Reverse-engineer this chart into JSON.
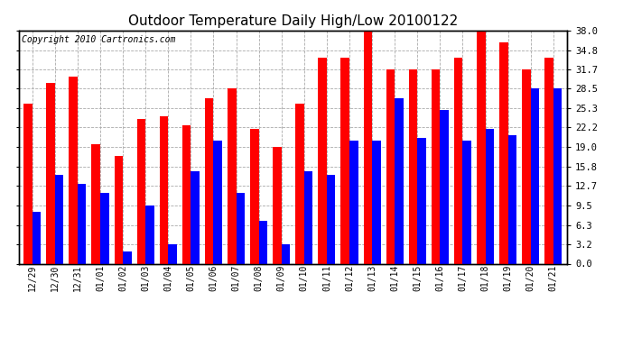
{
  "title": "Outdoor Temperature Daily High/Low 20100122",
  "copyright": "Copyright 2010 Cartronics.com",
  "dates": [
    "12/29",
    "12/30",
    "12/31",
    "01/01",
    "01/02",
    "01/03",
    "01/04",
    "01/05",
    "01/06",
    "01/07",
    "01/08",
    "01/09",
    "01/10",
    "01/11",
    "01/12",
    "01/13",
    "01/14",
    "01/15",
    "01/16",
    "01/17",
    "01/18",
    "01/19",
    "01/20",
    "01/21"
  ],
  "high": [
    26.0,
    29.5,
    30.5,
    19.5,
    17.5,
    23.5,
    24.0,
    22.5,
    27.0,
    28.5,
    22.0,
    19.0,
    26.0,
    33.5,
    33.5,
    38.0,
    31.7,
    31.7,
    31.7,
    33.5,
    38.0,
    36.0,
    31.7,
    33.5
  ],
  "low": [
    8.5,
    14.5,
    13.0,
    11.5,
    2.0,
    9.5,
    3.2,
    15.0,
    20.0,
    11.5,
    7.0,
    3.2,
    15.0,
    14.5,
    20.0,
    20.0,
    27.0,
    20.5,
    25.0,
    20.0,
    22.0,
    21.0,
    28.5,
    28.5
  ],
  "high_color": "#ff0000",
  "low_color": "#0000ff",
  "bg_color": "#ffffff",
  "grid_color": "#aaaaaa",
  "ylim": [
    0,
    38.0
  ],
  "yticks": [
    0.0,
    3.2,
    6.3,
    9.5,
    12.7,
    15.8,
    19.0,
    22.2,
    25.3,
    28.5,
    31.7,
    34.8,
    38.0
  ],
  "title_fontsize": 11,
  "copyright_fontsize": 7,
  "bar_width": 0.38
}
